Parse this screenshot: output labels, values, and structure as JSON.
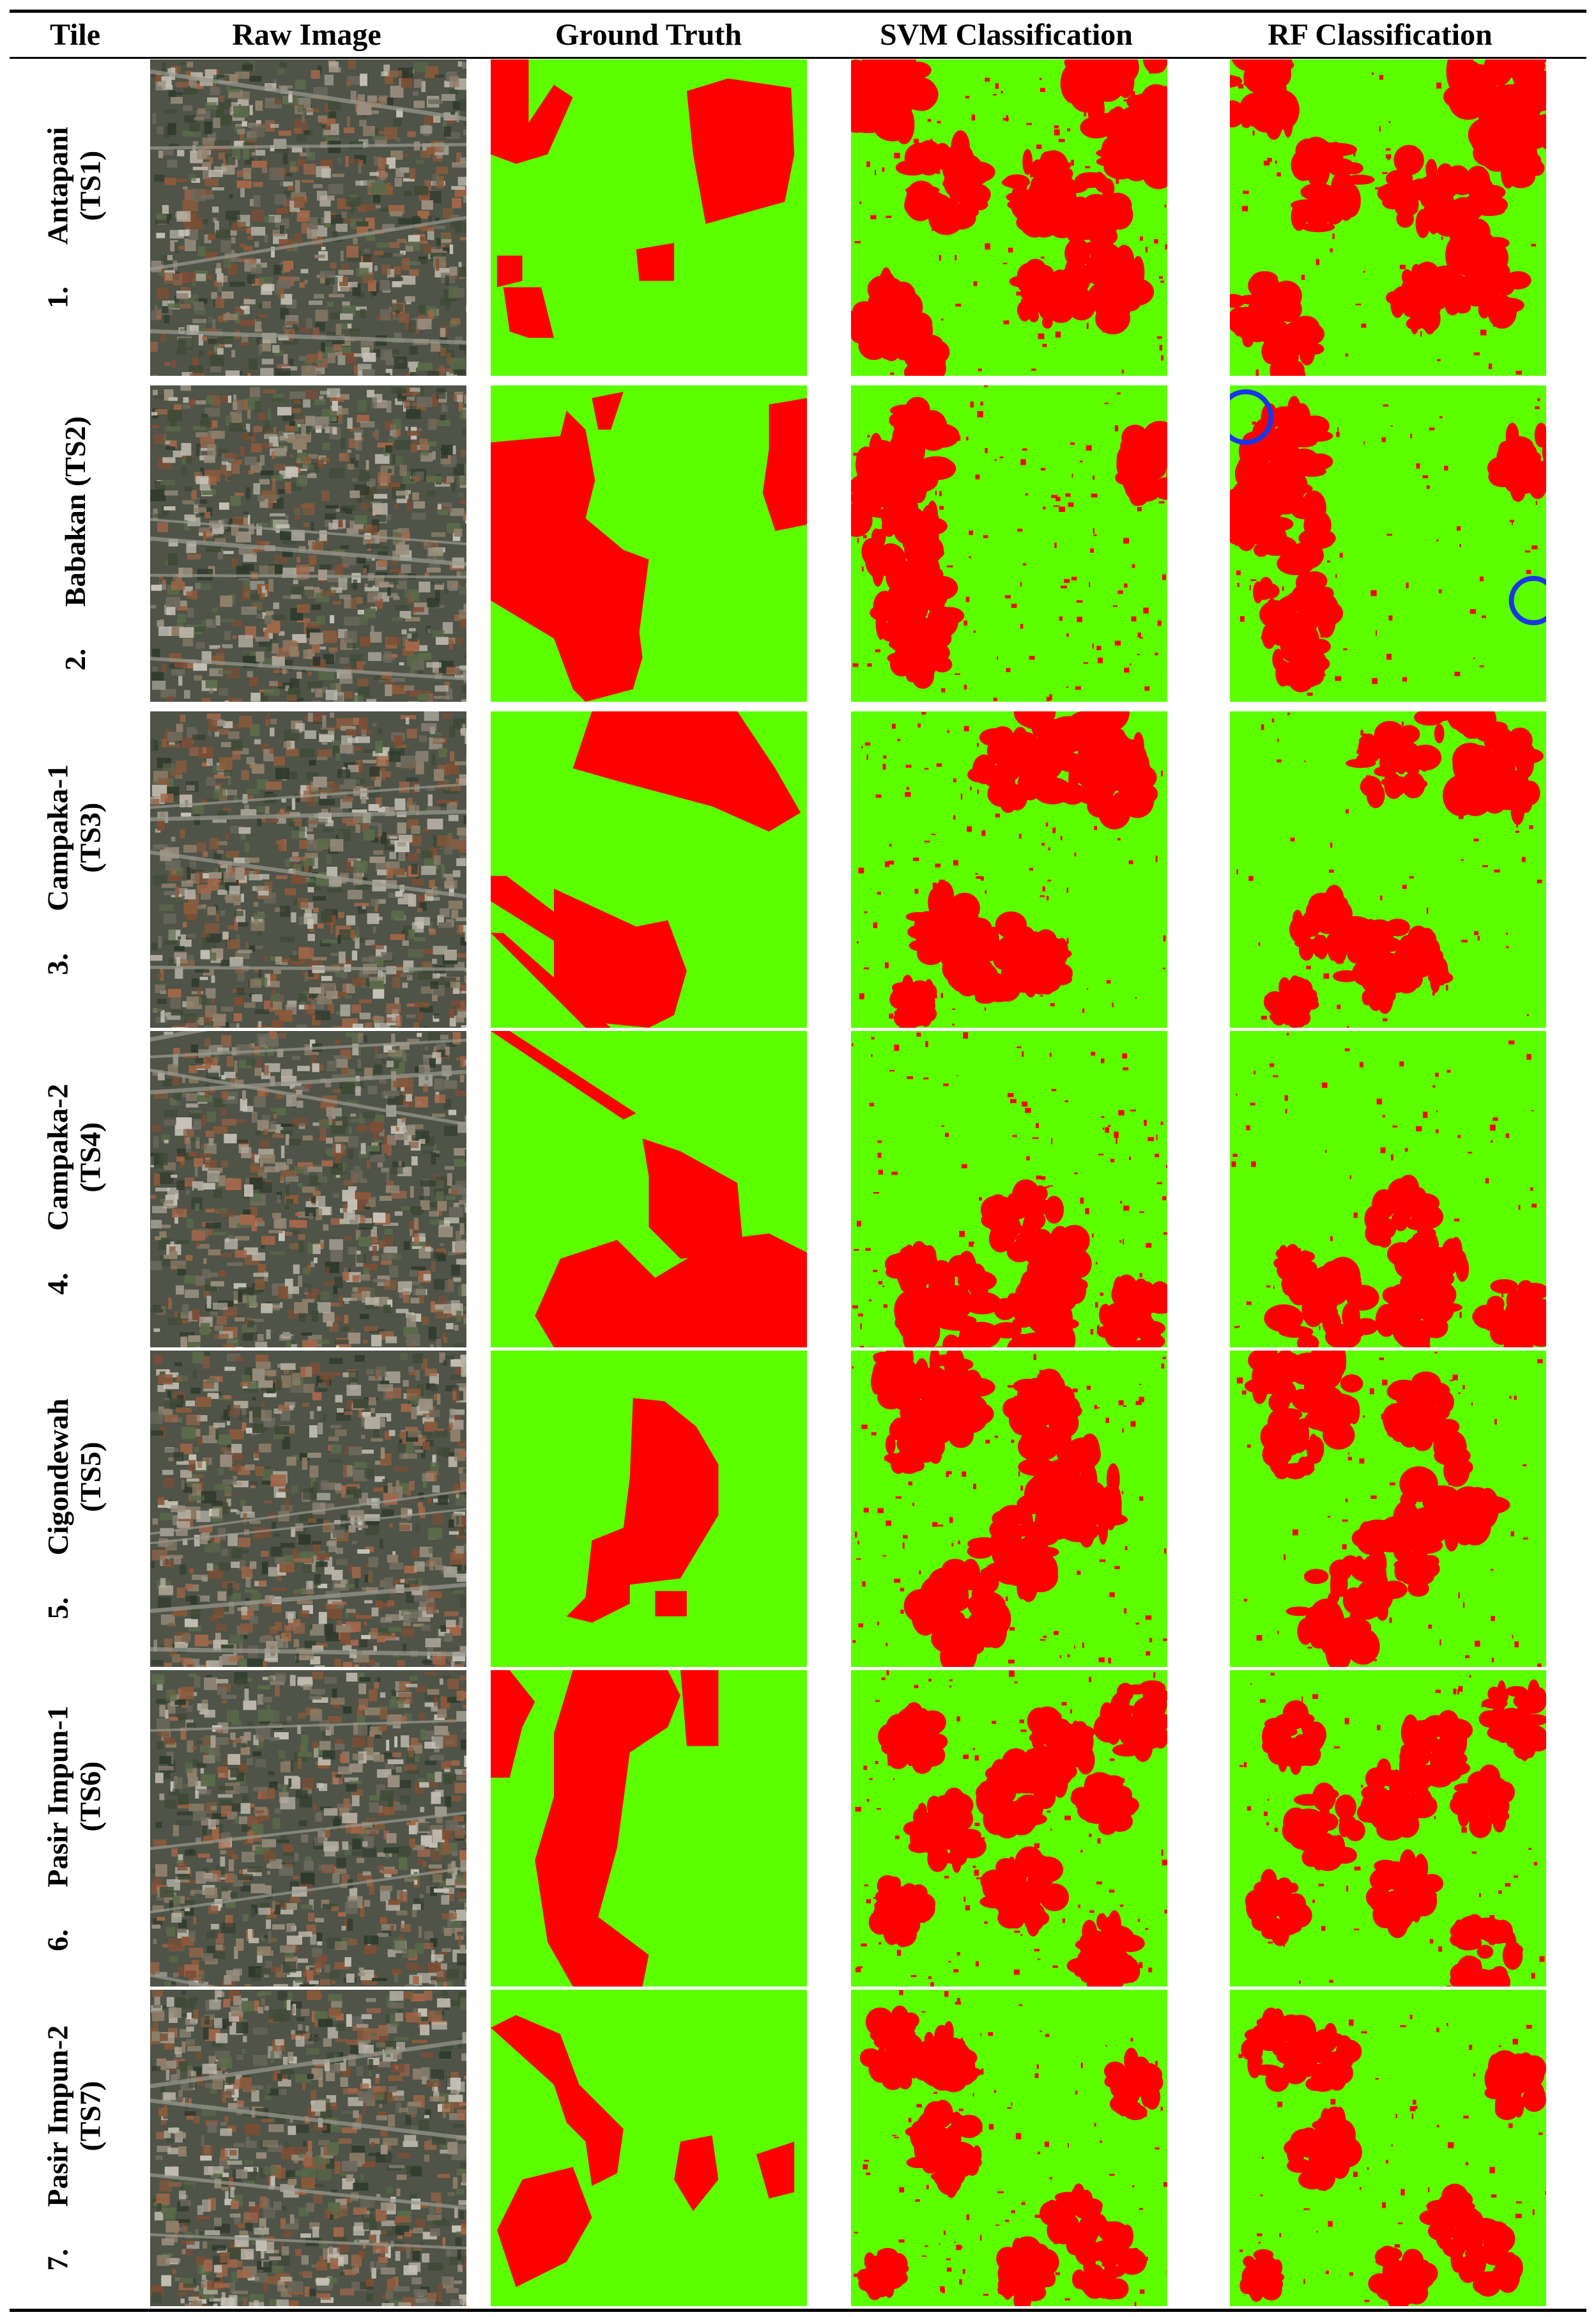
{
  "headers": {
    "tile": "Tile",
    "raw": "Raw Image",
    "gt": "Ground Truth",
    "svm": "SVM Classification",
    "rf": "RF Classification"
  },
  "colors": {
    "settlement": "#ff0000",
    "non_settlement": "#5bff00",
    "highlight_circle": "#1a36e6"
  },
  "rows": [
    {
      "num": "1.",
      "line1": "Antapani",
      "line2": "(TS1)",
      "inline": false
    },
    {
      "num": "2.",
      "line1": "Babakan (TS2)",
      "line2": "",
      "inline": true
    },
    {
      "num": "3.",
      "line1": "Campaka-1",
      "line2": "(TS3)",
      "inline": false
    },
    {
      "num": "4.",
      "line1": "Campaka-2",
      "line2": "(TS4)",
      "inline": false
    },
    {
      "num": "5.",
      "line1": "Cigondewah",
      "line2": "(TS5)",
      "inline": false
    },
    {
      "num": "6.",
      "line1": "Pasir Impun-1",
      "line2": "(TS6)",
      "inline": false
    },
    {
      "num": "7.",
      "line1": "Pasir Impun-2",
      "line2": "(TS7)",
      "inline": false
    }
  ]
}
